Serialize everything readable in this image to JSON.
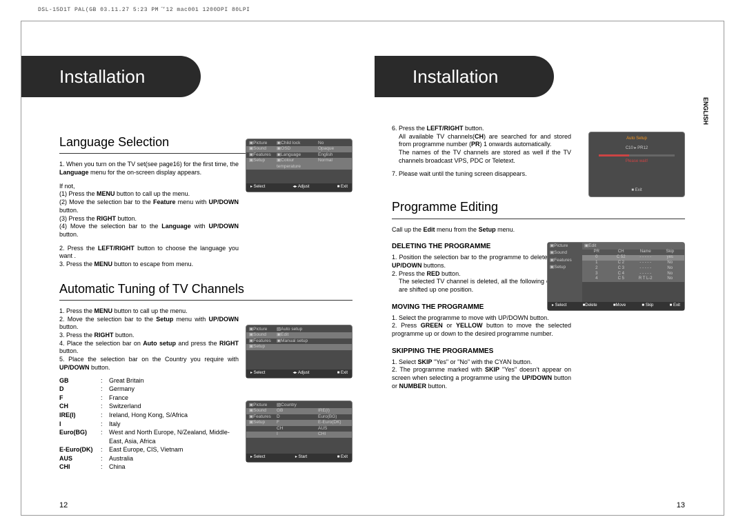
{
  "meta": {
    "header": "DSL-15D1T PAL(GB 03.11.27 5:23 PM  ̆’12 mac001 1200DPI 80LPI",
    "lang_tab": "ENGLISH"
  },
  "left": {
    "chapter": "Installation",
    "page_num": "12",
    "sec1_title": "Language Selection",
    "sec1_p1a": "1. When you turn on the TV set(see page16) for the first time, the ",
    "sec1_p1b": "Language",
    "sec1_p1c": " menu for the on-screen display appears.",
    "sec1_ifnot": "If not,",
    "sec1_l1a": "(1) Press the ",
    "sec1_l1b": "MENU",
    "sec1_l1c": " button to call up the menu.",
    "sec1_l2a": "(2) Move the selection bar to the ",
    "sec1_l2b": "Feature",
    "sec1_l2c": " menu with ",
    "sec1_l2d": "UP/DOWN",
    "sec1_l2e": " button.",
    "sec1_l3a": "(3) Press the ",
    "sec1_l3b": "RIGHT",
    "sec1_l3c": " button.",
    "sec1_l4a": "(4) Move the selection bar to the ",
    "sec1_l4b": "Language",
    "sec1_l4c": " with ",
    "sec1_l4d": "UP/DOWN",
    "sec1_l4e": " button.",
    "sec1_p2a": "2. Press the ",
    "sec1_p2b": "LEFT/RIGHT",
    "sec1_p2c": " button to choose the language you want .",
    "sec1_p3a": "3. Press the ",
    "sec1_p3b": "MENU",
    "sec1_p3c": " button to escape from menu.",
    "sec2_title": "Automatic Tuning of TV Channels",
    "sec2_l1a": "1. Press the ",
    "sec2_l1b": "MENU",
    "sec2_l1c": " button to call up the menu.",
    "sec2_l2a": "2. Move the selection bar to the ",
    "sec2_l2b": "Setup",
    "sec2_l2c": " menu with ",
    "sec2_l2d": "UP/DOWN",
    "sec2_l2e": " button.",
    "sec2_l3a": "3. Press the ",
    "sec2_l3b": "RIGHT",
    "sec2_l3c": " button.",
    "sec2_l4a": "4. Place the selection bar on ",
    "sec2_l4b": "Auto setup",
    "sec2_l4c": " and press the ",
    "sec2_l4d": "RIGHT",
    "sec2_l4e": " button.",
    "sec2_l5a": "5. Place the selection bar on the Country you require with ",
    "sec2_l5b": "UP/DOWN",
    "sec2_l5c": " button.",
    "countries": [
      {
        "code": "GB",
        "name": "Great Britain"
      },
      {
        "code": "D",
        "name": "Germany"
      },
      {
        "code": "F",
        "name": "France"
      },
      {
        "code": "CH",
        "name": "Switzerland"
      },
      {
        "code": "IRE(I)",
        "name": "Ireland, Hong Kong, S/Africa"
      },
      {
        "code": "I",
        "name": "Italy"
      },
      {
        "code": "Euro(BG)",
        "name": "West and North Europe, N/Zealand, Middle-East, Asia, Africa"
      },
      {
        "code": "E-Euro(DK)",
        "name": "East Europe, CIS, Vietnam"
      },
      {
        "code": "AUS",
        "name": "Australia"
      },
      {
        "code": "CHI",
        "name": "China"
      }
    ],
    "ss1": {
      "rows": [
        {
          "l": "▣Picture",
          "m": "▣Child lock",
          "r": "No"
        },
        {
          "l": "▣Sound",
          "m": "▣OSD",
          "r": "Opaque"
        },
        {
          "l": "▣Features",
          "m": "▣Language",
          "r": "English"
        },
        {
          "l": "▣Setup",
          "m": "▣Colour temperature",
          "r": "Normal"
        }
      ],
      "footer": [
        "▸ Select",
        "◂▸ Adjust",
        "■ Exit"
      ]
    },
    "ss2": {
      "rows": [
        {
          "l": "▣Picture",
          "m": "▧Auto setup",
          "r": ""
        },
        {
          "l": "▣Sound",
          "m": "▣Edit",
          "r": ""
        },
        {
          "l": "▣Features",
          "m": "▣Manual setup",
          "r": ""
        },
        {
          "l": "▣Setup",
          "m": "",
          "r": ""
        }
      ],
      "footer": [
        "▸ Select",
        "◂▸ Adjust",
        "■ Exit"
      ]
    },
    "ss3": {
      "rows": [
        {
          "l": "▣Picture",
          "m": "▧Country",
          "r": ""
        },
        {
          "l": "▣Sound",
          "m": "GB",
          "r": "IRE(I)"
        },
        {
          "l": "▣Features",
          "m": "D",
          "r": "Euro(BG)"
        },
        {
          "l": "▣Setup",
          "m": "F",
          "r": "E-Euro(DK)"
        },
        {
          "l": "",
          "m": "CH",
          "r": "AUS"
        },
        {
          "l": "",
          "m": "I",
          "r": "CHI"
        }
      ],
      "footer": [
        "▸ Select",
        "▸ Start",
        "■ Exit"
      ]
    }
  },
  "right": {
    "chapter": "Installation",
    "page_num": "13",
    "p6a": "6. Press the ",
    "p6b": "LEFT/RIGHT",
    "p6c": " button.",
    "p6d": "All available TV channels(",
    "p6da": "CH",
    "p6e": ") are searched for and stored from programme number (",
    "p6ea": "PR",
    "p6f": ") 1 onwards automatically.",
    "p6g": "The names of the TV channels are stored as well if the TV channels broadcast VPS, PDC or Teletext.",
    "p7": "7. Please wait until the tuning screen disappears.",
    "sec2_title": "Programme Editing",
    "sec2_intro_a": "Call up the ",
    "sec2_intro_b": "Edit",
    "sec2_intro_c": " menu from the ",
    "sec2_intro_d": "Setup",
    "sec2_intro_e": " menu.",
    "del_title": "DELETING THE PROGRAMME",
    "del_1a": "1. Position the selection bar to the programme to delete with the ",
    "del_1b": "UP/DOWN",
    "del_1c": " buttons.",
    "del_2a": "2. Press the ",
    "del_2b": "RED",
    "del_2c": " button.",
    "del_3": "The selected TV channel is deleted, all the following channels are shifted up one position.",
    "mov_title": "MOVING THE PROGRAMME",
    "mov_1": "1. Select the programme to move with UP/DOWN button.",
    "mov_2a": "2. Press ",
    "mov_2b": "GREEN",
    "mov_2c": " or ",
    "mov_2d": "YELLOW",
    "mov_2e": " button to move the selected programme up or down to the desired programme number.",
    "skip_title": "SKIPPING THE PROGRAMMES",
    "skip_1a": "1. Select ",
    "skip_1b": "SKIP",
    "skip_1c": " \"Yes\" or \"No\" with the CYAN button.",
    "skip_2a": "2. The programme marked with ",
    "skip_2b": "SKIP",
    "skip_2c": " \"Yes\" doesn't appear on screen when selecting a programme using the ",
    "skip_2d": "UP/DOWN",
    "skip_2e": " button or ",
    "skip_2f": "NUMBER",
    "skip_2g": " button.",
    "ss_auto": {
      "title": "Auto Setup",
      "line": "C10 ▸ PR12",
      "wait": "Please wait!",
      "exit": "■ Exit"
    },
    "ss_edit": {
      "rows": [
        {
          "l": "▣Picture",
          "m": "▣Edit"
        },
        {
          "l": "▣Sound"
        },
        {
          "l": "▣Features"
        },
        {
          "l": "▣Setup"
        }
      ],
      "header": [
        "PR",
        "CH",
        "Name",
        "Skip"
      ],
      "data": [
        [
          "0",
          "C 52",
          "- - - - -",
          "yes"
        ],
        [
          "1",
          "C 2",
          "- - - - -",
          "No"
        ],
        [
          "2",
          "C 3",
          "- - - - -",
          "No"
        ],
        [
          "3",
          "C 4",
          "- - - - -",
          "No"
        ],
        [
          "4",
          "C 5",
          "R T L-2",
          "No"
        ]
      ],
      "footer": [
        "▸ Select",
        "■Delete",
        "■Move",
        "■ Skip",
        "■ Exit"
      ]
    }
  }
}
